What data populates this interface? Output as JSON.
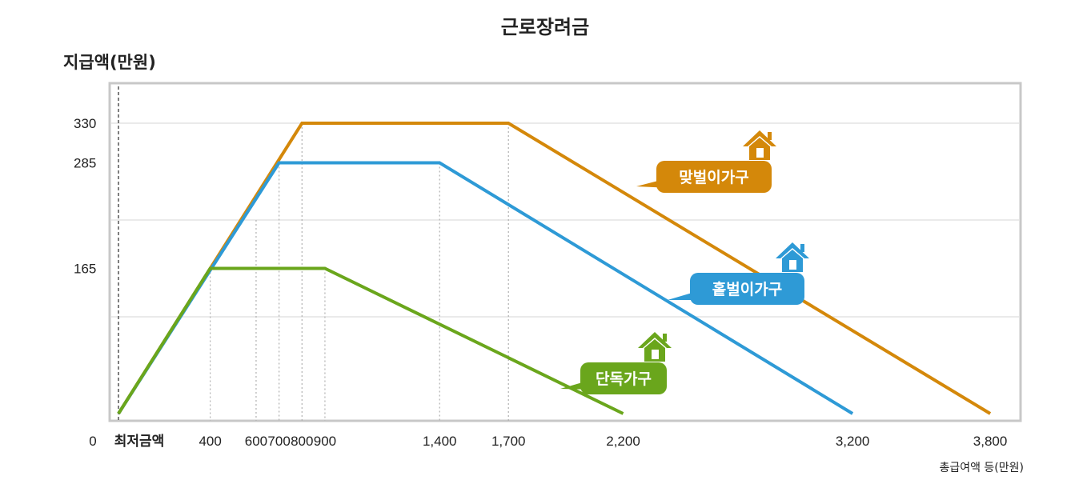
{
  "chart_data": {
    "type": "line",
    "title": "근로장려금",
    "ylabel": "지급액(만원)",
    "xlabel": "총급여액 등(만원)",
    "x_ticks": [
      {
        "value": 0,
        "label": "0"
      },
      {
        "value": 150,
        "label": "최저금액"
      },
      {
        "value": 400,
        "label": "400"
      },
      {
        "value": 600,
        "label": "600"
      },
      {
        "value": 700,
        "label": "700"
      },
      {
        "value": 800,
        "label": "800"
      },
      {
        "value": 900,
        "label": "900"
      },
      {
        "value": 1400,
        "label": "1,400"
      },
      {
        "value": 1700,
        "label": "1,700"
      },
      {
        "value": 2200,
        "label": "2,200"
      },
      {
        "value": 3200,
        "label": "3,200"
      },
      {
        "value": 3800,
        "label": "3,800"
      }
    ],
    "y_ticks": [
      {
        "value": 165,
        "label": "165"
      },
      {
        "value": 285,
        "label": "285"
      },
      {
        "value": 330,
        "label": "330"
      }
    ],
    "xlim": [
      0,
      3900
    ],
    "ylim": [
      0,
      380
    ],
    "series": [
      {
        "name": "맞벌이가구",
        "color": "#d4880a",
        "points": [
          [
            0,
            0
          ],
          [
            800,
            330
          ],
          [
            1700,
            330
          ],
          [
            3800,
            0
          ]
        ]
      },
      {
        "name": "홑벌이가구",
        "color": "#2e9ad6",
        "points": [
          [
            0,
            0
          ],
          [
            700,
            285
          ],
          [
            1400,
            285
          ],
          [
            3200,
            0
          ]
        ]
      },
      {
        "name": "단독가구",
        "color": "#6aa61c",
        "points": [
          [
            0,
            0
          ],
          [
            400,
            165
          ],
          [
            900,
            165
          ],
          [
            2200,
            0
          ]
        ]
      }
    ],
    "legend_placement": "inline callouts at line ends",
    "grid": true
  }
}
